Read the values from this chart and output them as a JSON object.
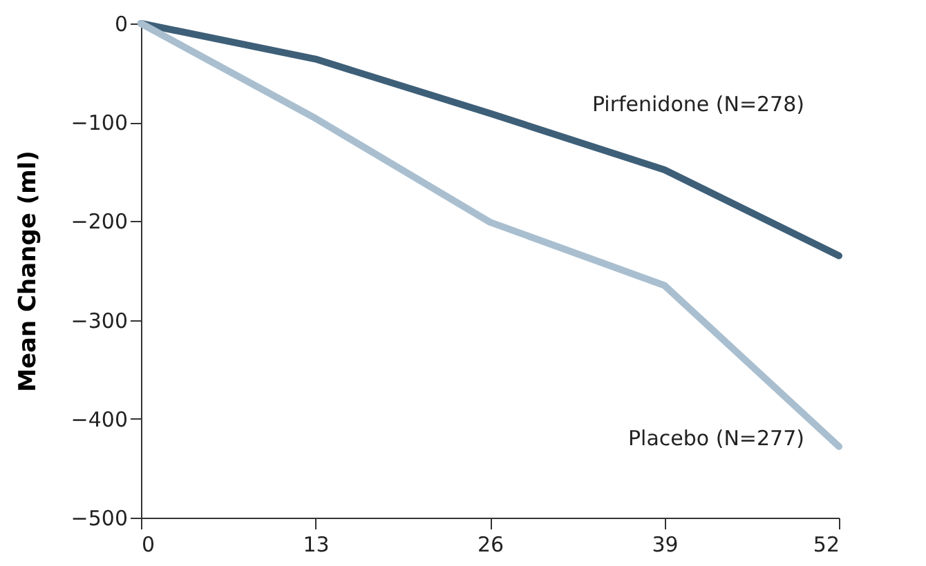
{
  "chart_data": {
    "type": "line",
    "ylabel": "Mean Change (ml)",
    "x": [
      0,
      13,
      26,
      39,
      52
    ],
    "series": [
      {
        "name": "Pirfenidone (N=278)",
        "color": "#3e5f78",
        "values": [
          0,
          -36,
          -91,
          -148,
          -235
        ]
      },
      {
        "name": "Placebo (N=277)",
        "color": "#a9bfd0",
        "values": [
          0,
          -96,
          -201,
          -265,
          -428
        ]
      }
    ],
    "xlim": [
      0,
      52
    ],
    "xticks": [
      0,
      13,
      26,
      39,
      52
    ],
    "ylim": [
      -500,
      0
    ],
    "yticks": [
      0,
      -100,
      -200,
      -300,
      -400,
      -500
    ],
    "grid": false,
    "marker": "none",
    "line_style": "solid"
  }
}
